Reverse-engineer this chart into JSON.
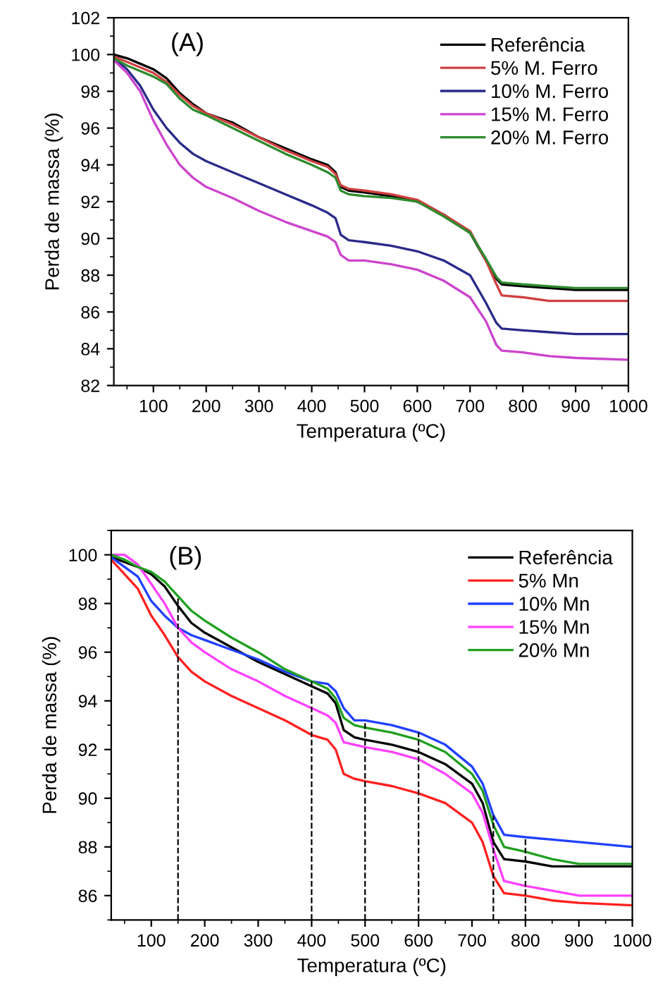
{
  "chart_data": [
    {
      "type": "line",
      "xlabel": "Temperatura (ºC)",
      "ylabel": "Perda de massa (%)",
      "annotations": [
        "(A)"
      ],
      "xlim": [
        25,
        1000
      ],
      "ylim": [
        82,
        102
      ],
      "xticks": [
        100,
        200,
        300,
        400,
        500,
        600,
        700,
        800,
        900,
        1000
      ],
      "yticks": [
        82,
        84,
        86,
        88,
        90,
        92,
        94,
        96,
        98,
        100,
        102
      ],
      "legend": "top right",
      "grid": false,
      "marker": "none",
      "line_style": "solid",
      "x": [
        25,
        50,
        75,
        100,
        125,
        150,
        175,
        200,
        250,
        300,
        350,
        400,
        430,
        445,
        455,
        470,
        500,
        550,
        600,
        650,
        700,
        730,
        750,
        760,
        800,
        850,
        900,
        1000
      ],
      "series": [
        {
          "name": "Referência",
          "color": "#000000",
          "values": [
            100,
            99.8,
            99.5,
            99.2,
            98.7,
            97.9,
            97.3,
            96.8,
            96.3,
            95.5,
            94.9,
            94.3,
            94.0,
            93.6,
            92.8,
            92.6,
            92.5,
            92.3,
            92.0,
            91.3,
            90.3,
            88.8,
            87.8,
            87.5,
            87.4,
            87.3,
            87.2,
            87.2
          ]
        },
        {
          "name": "5% M. Ferro",
          "color": "#d04040",
          "values": [
            99.9,
            99.6,
            99.3,
            99.0,
            98.5,
            97.8,
            97.2,
            96.8,
            96.2,
            95.5,
            94.8,
            94.2,
            93.9,
            93.5,
            92.9,
            92.7,
            92.6,
            92.4,
            92.1,
            91.3,
            90.4,
            88.8,
            87.5,
            86.9,
            86.8,
            86.6,
            86.6,
            86.6
          ]
        },
        {
          "name": "10% M. Ferro",
          "color": "#2a2a8a",
          "values": [
            99.8,
            99.2,
            98.3,
            97.0,
            96.0,
            95.2,
            94.6,
            94.2,
            93.6,
            93.0,
            92.4,
            91.8,
            91.4,
            91.1,
            90.2,
            89.9,
            89.8,
            89.6,
            89.3,
            88.8,
            88.0,
            86.5,
            85.4,
            85.1,
            85.0,
            84.9,
            84.8,
            84.8
          ]
        },
        {
          "name": "15% M. Ferro",
          "color": "#cc44cc",
          "values": [
            99.7,
            99.0,
            98.0,
            96.4,
            95.1,
            94.0,
            93.3,
            92.8,
            92.2,
            91.5,
            90.9,
            90.4,
            90.1,
            89.8,
            89.1,
            88.8,
            88.8,
            88.6,
            88.3,
            87.7,
            86.8,
            85.5,
            84.2,
            83.9,
            83.8,
            83.6,
            83.5,
            83.4
          ]
        },
        {
          "name": "20% M. Ferro",
          "color": "#2e8b2e",
          "values": [
            99.8,
            99.4,
            99.1,
            98.8,
            98.4,
            97.6,
            97.0,
            96.7,
            96.0,
            95.3,
            94.6,
            94.0,
            93.6,
            93.3,
            92.6,
            92.4,
            92.3,
            92.2,
            92.0,
            91.2,
            90.3,
            88.9,
            87.9,
            87.6,
            87.5,
            87.4,
            87.3,
            87.3
          ]
        }
      ]
    },
    {
      "type": "line",
      "xlabel": "Temperatura (ºC)",
      "ylabel": "Perda de massa (%)",
      "annotations": [
        "(B)"
      ],
      "xlim": [
        25,
        1000
      ],
      "ylim": [
        85,
        101
      ],
      "xticks": [
        100,
        200,
        300,
        400,
        500,
        600,
        700,
        800,
        900,
        1000
      ],
      "yticks": [
        86,
        88,
        90,
        92,
        94,
        96,
        98,
        100
      ],
      "legend": "top right",
      "grid": false,
      "marker": "none",
      "line_style": "solid",
      "x": [
        25,
        50,
        75,
        100,
        125,
        150,
        175,
        200,
        250,
        300,
        350,
        400,
        430,
        445,
        460,
        480,
        500,
        550,
        600,
        650,
        700,
        720,
        740,
        760,
        800,
        850,
        900,
        1000
      ],
      "series": [
        {
          "name": "Referência",
          "color": "#000000",
          "values": [
            99.9,
            99.7,
            99.5,
            99.2,
            98.7,
            97.9,
            97.2,
            96.8,
            96.2,
            95.6,
            95.1,
            94.6,
            94.3,
            93.9,
            92.8,
            92.5,
            92.4,
            92.2,
            91.9,
            91.4,
            90.6,
            89.8,
            88.2,
            87.5,
            87.4,
            87.2,
            87.2,
            87.2
          ]
        },
        {
          "name": "5% Mn",
          "color": "#ff2020",
          "values": [
            99.8,
            99.2,
            98.6,
            97.5,
            96.7,
            95.8,
            95.2,
            94.8,
            94.2,
            93.7,
            93.2,
            92.6,
            92.4,
            92.0,
            91.0,
            90.8,
            90.7,
            90.5,
            90.2,
            89.8,
            89.0,
            88.2,
            86.8,
            86.1,
            86.0,
            85.8,
            85.7,
            85.6
          ]
        },
        {
          "name": "10% Mn",
          "color": "#2040ff",
          "values": [
            99.9,
            99.5,
            99.1,
            98.1,
            97.5,
            97.0,
            96.7,
            96.5,
            96.1,
            95.7,
            95.2,
            94.8,
            94.7,
            94.4,
            93.7,
            93.2,
            93.2,
            93.0,
            92.7,
            92.2,
            91.3,
            90.6,
            89.3,
            88.5,
            88.4,
            88.3,
            88.2,
            88.0
          ]
        },
        {
          "name": "15% Mn",
          "color": "#ff40ff",
          "values": [
            100,
            100,
            99.6,
            98.8,
            98.0,
            97.0,
            96.4,
            96.0,
            95.3,
            94.8,
            94.2,
            93.7,
            93.4,
            93.1,
            92.3,
            92.2,
            92.1,
            91.9,
            91.6,
            91.0,
            90.2,
            89.4,
            87.9,
            86.6,
            86.4,
            86.2,
            86.0,
            86.0
          ]
        },
        {
          "name": "20% Mn",
          "color": "#20a020",
          "values": [
            100,
            99.8,
            99.5,
            99.3,
            98.9,
            98.3,
            97.7,
            97.3,
            96.6,
            96.0,
            95.3,
            94.8,
            94.5,
            94.1,
            93.3,
            93.0,
            92.9,
            92.7,
            92.4,
            91.9,
            91.0,
            90.3,
            88.9,
            88.0,
            87.8,
            87.5,
            87.3,
            87.3
          ]
        }
      ],
      "ref_lines": [
        {
          "axis": "x",
          "value": 150,
          "color": "#000000",
          "line_style": "dashed"
        },
        {
          "axis": "x",
          "value": 400,
          "color": "#000000",
          "line_style": "dashed"
        },
        {
          "axis": "x",
          "value": 500,
          "color": "#000000",
          "line_style": "dashed"
        },
        {
          "axis": "x",
          "value": 600,
          "color": "#000000",
          "line_style": "dashed"
        },
        {
          "axis": "x",
          "value": 740,
          "color": "#000000",
          "line_style": "dashed"
        },
        {
          "axis": "x",
          "value": 800,
          "color": "#000000",
          "line_style": "dashed"
        }
      ]
    }
  ]
}
